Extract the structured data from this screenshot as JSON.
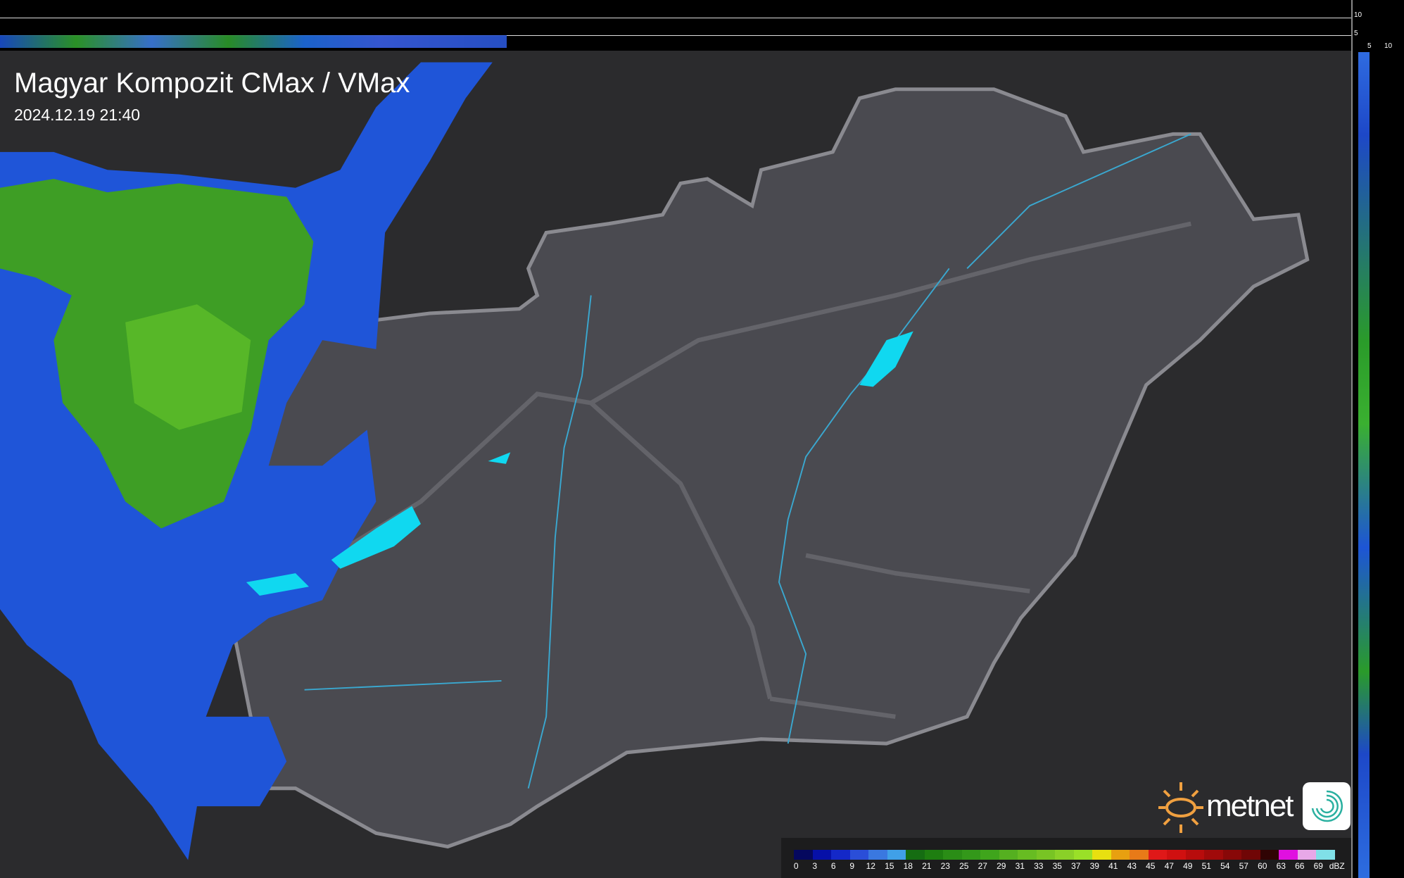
{
  "title": "Magyar Kompozit CMax / VMax",
  "timestamp": "2024.12.19 21:40",
  "top_scale_ticks": [
    "10",
    "5"
  ],
  "right_scale_ticks": [
    "5",
    "10"
  ],
  "legend": {
    "unit": "dBZ",
    "labels": [
      "0",
      "3",
      "6",
      "9",
      "12",
      "15",
      "18",
      "21",
      "23",
      "25",
      "27",
      "29",
      "31",
      "33",
      "35",
      "37",
      "39",
      "41",
      "43",
      "45",
      "47",
      "49",
      "51",
      "54",
      "57",
      "60",
      "63",
      "66",
      "69"
    ],
    "colors": [
      "#05085e",
      "#0610a8",
      "#1428c8",
      "#2a4ed8",
      "#3a78e0",
      "#40a0e8",
      "#156d12",
      "#1e7e10",
      "#2a8d16",
      "#33981a",
      "#3fa51c",
      "#55b020",
      "#67bc22",
      "#78c424",
      "#8ad028",
      "#9ae028",
      "#e8e010",
      "#e8a010",
      "#e87a18",
      "#e01818",
      "#d01010",
      "#b80c0c",
      "#a00a0a",
      "#880808",
      "#700606",
      "#300404",
      "#e010e0",
      "#e8a8e8",
      "#80e0e8"
    ]
  },
  "colors": {
    "country_fill": "#4a4a50",
    "border": "#8a8a90",
    "river": "#3aa8d0",
    "lake": "#10d8f0",
    "radar_green": "#3e9e25",
    "radar_blue": "#1f55d8"
  },
  "branding": {
    "logo_text": "metnet"
  }
}
